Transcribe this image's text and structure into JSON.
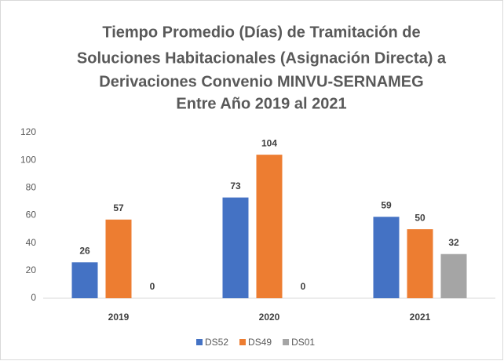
{
  "chart_data": {
    "type": "bar",
    "title": [
      "Tiempo Promedio (Días) de Tramitación de",
      "Soluciones Habitacionales (Asignación Directa) a",
      "Derivaciones Convenio MINVU-SERNAMEG",
      "Entre Año 2019 al 2021"
    ],
    "categories": [
      "2019",
      "2020",
      "2021"
    ],
    "series": [
      {
        "name": "DS52",
        "color": "#4472c4",
        "values": [
          26,
          73,
          59
        ]
      },
      {
        "name": "DS49",
        "color": "#ed7d31",
        "values": [
          57,
          104,
          50
        ]
      },
      {
        "name": "DS01",
        "color": "#a5a5a5",
        "values": [
          0,
          0,
          32
        ]
      }
    ],
    "ylim": [
      0,
      120
    ],
    "yticks": [
      0,
      20,
      40,
      60,
      80,
      100,
      120
    ],
    "grid": false,
    "legend": "bottom"
  }
}
